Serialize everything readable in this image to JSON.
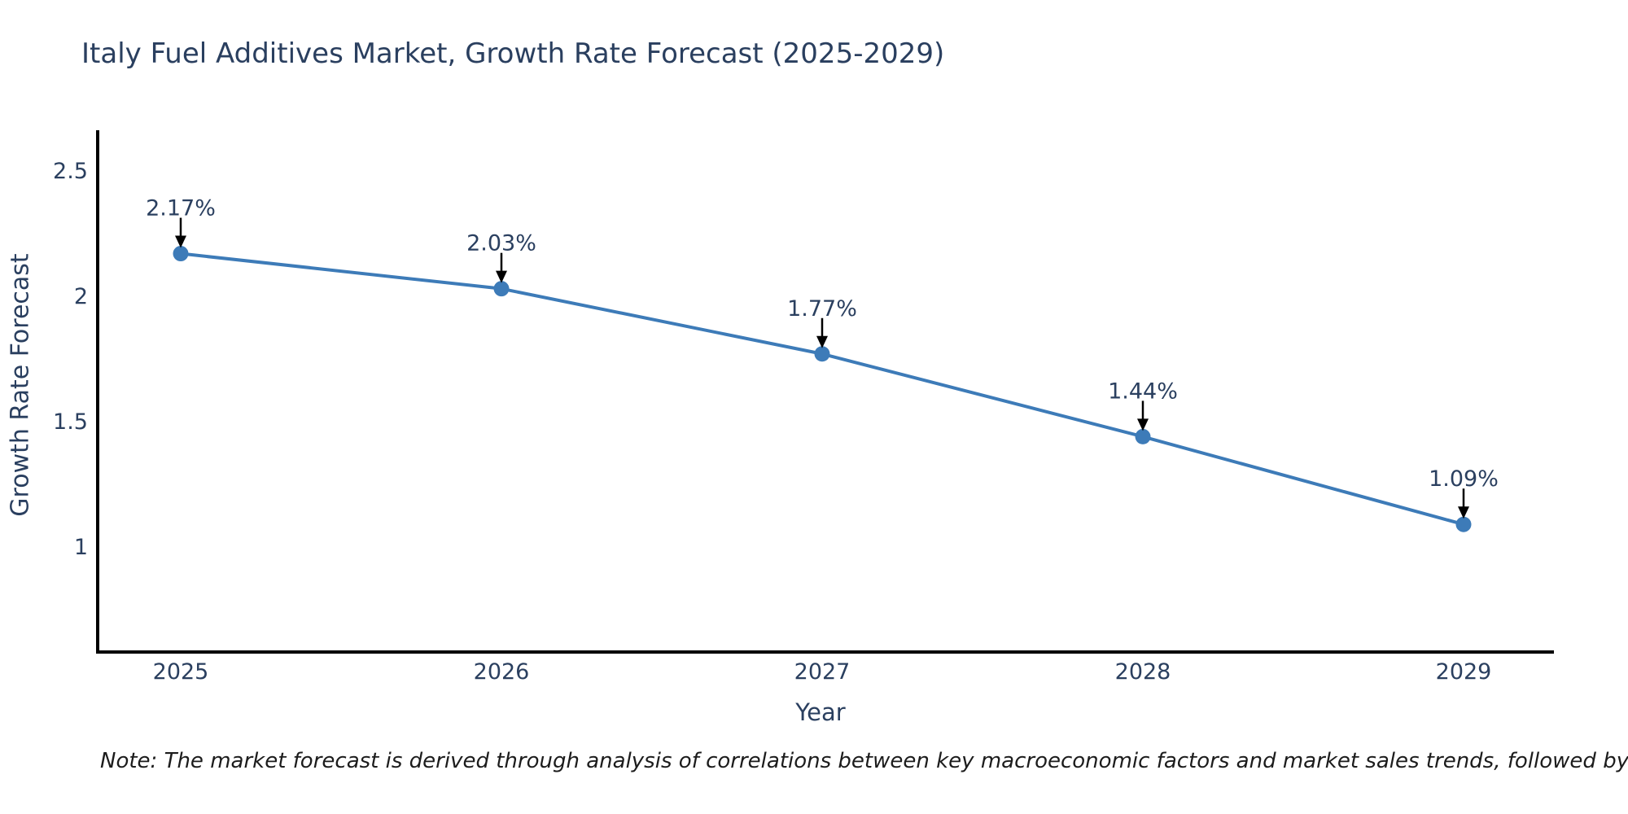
{
  "title": "Italy Fuel Additives Market, Growth Rate Forecast (2025-2029)",
  "note": "Note: The market forecast is derived through analysis of correlations between key macroeconomic factors and market sales trends, followed by predictive modeling to project future sales",
  "colors": {
    "title_text": "#2a3f5f",
    "tick_text": "#2a3f5f",
    "annotation_text": "#2a3f5f",
    "axis_line": "#000000",
    "line": "#3d7bb8",
    "marker": "#3d7bb8",
    "annotation_arrow": "#000000",
    "note_text": "#1c1c1c",
    "background": "#ffffff"
  },
  "chart_data": {
    "type": "line",
    "title": "Italy Fuel Additives Market, Growth Rate Forecast (2025-2029)",
    "xlabel": "Year",
    "ylabel": "Growth Rate Forecast",
    "categories": [
      "2025",
      "2026",
      "2027",
      "2028",
      "2029"
    ],
    "series": [
      {
        "name": "Growth Rate Forecast",
        "values": [
          2.17,
          2.03,
          1.77,
          1.44,
          1.09
        ],
        "data_labels": [
          "2.17%",
          "2.03%",
          "1.77%",
          "1.44%",
          "1.09%"
        ]
      }
    ],
    "yticks": [
      {
        "value": 1.0,
        "label": "1"
      },
      {
        "value": 1.5,
        "label": "1.5"
      },
      {
        "value": 2.0,
        "label": "2"
      },
      {
        "value": 2.5,
        "label": "2.5"
      }
    ],
    "ylim": [
      0.581,
      2.662
    ],
    "grid": false,
    "legend": false,
    "annotations": "each point labeled with percent value and a downward black arrow"
  }
}
